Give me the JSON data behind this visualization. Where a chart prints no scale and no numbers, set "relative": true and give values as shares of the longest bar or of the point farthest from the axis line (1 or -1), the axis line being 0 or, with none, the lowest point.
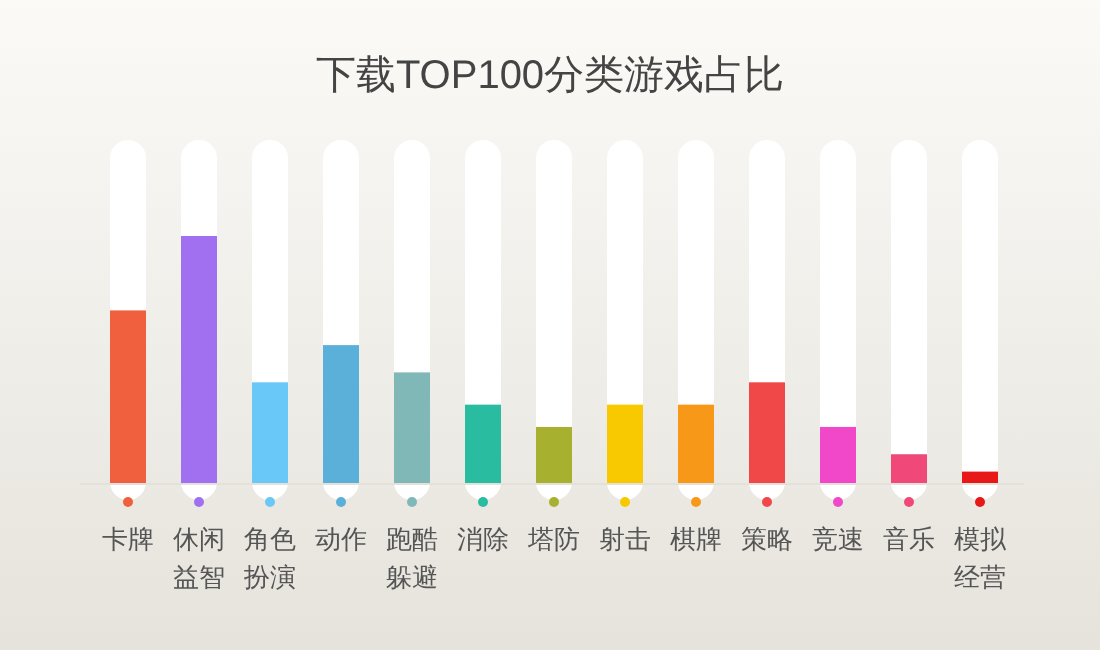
{
  "chart_data": {
    "type": "bar",
    "title": "下载TOP100分类游戏占比",
    "relative": true,
    "categories": [
      "卡牌",
      "休闲益智",
      "角色扮演",
      "动作",
      "跑酷躲避",
      "消除",
      "塔防",
      "射击",
      "棋牌",
      "策略",
      "竞速",
      "音乐",
      "模拟经营"
    ],
    "values": [
      0.7,
      1,
      0.41,
      0.56,
      0.45,
      0.32,
      0.23,
      0.32,
      0.32,
      0.41,
      0.23,
      0.12,
      0.05
    ],
    "colors": [
      "#f0603f",
      "#a070f0",
      "#6ac8f8",
      "#5ab0d8",
      "#80b8b8",
      "#2abca0",
      "#a8b030",
      "#f8c800",
      "#f89818",
      "#f04848",
      "#f048c8",
      "#f04878",
      "#e81818"
    ]
  }
}
